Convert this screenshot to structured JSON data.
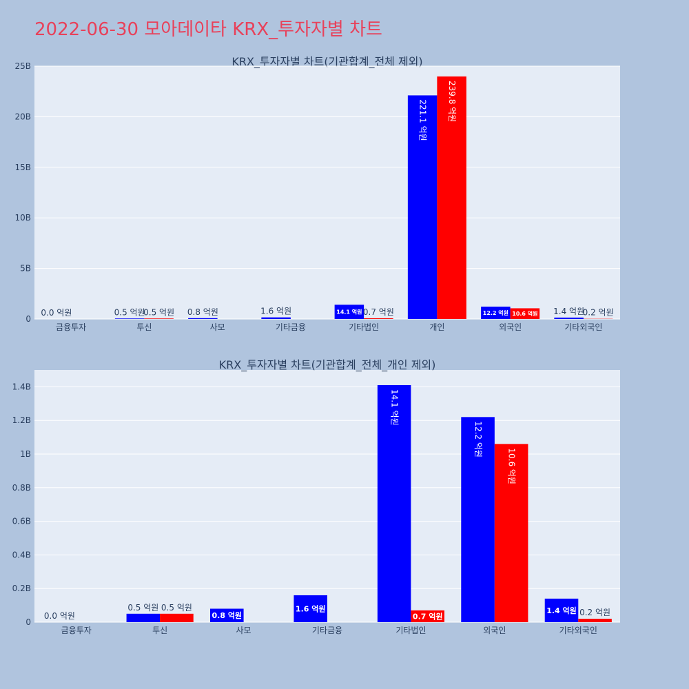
{
  "page": {
    "title": "2022-06-30 모아데이타 KRX_투자자별 차트"
  },
  "colors": {
    "series1": "#0000ff",
    "series2": "#ff0000",
    "plot_bg": "#e5ecf6",
    "page_bg": "#b0c4de",
    "title": "#e8415a"
  },
  "chart_data": [
    {
      "type": "bar",
      "title": "KRX_투자자별 차트(기관합계_전체 제외)",
      "categories": [
        "금융투자",
        "투신",
        "사모",
        "기타금융",
        "기타법인",
        "개인",
        "외국인",
        "기타외국인"
      ],
      "ylim": [
        0,
        25000000000
      ],
      "yticks": [
        0,
        5000000000,
        10000000000,
        15000000000,
        20000000000,
        25000000000
      ],
      "yticklabels": [
        "0",
        "5B",
        "10B",
        "15B",
        "20B",
        "25B"
      ],
      "grid": true,
      "series": [
        {
          "values": [
            0,
            50000000,
            80000000,
            160000000,
            1410000000,
            22110000000,
            1220000000,
            140000000
          ],
          "labels": [
            "0.0 억원",
            "0.5 억원",
            "0.8 억원",
            "1.6 억원",
            "14.1 억원",
            "221.1 억원",
            "12.2 억원",
            "1.4 억원"
          ]
        },
        {
          "values": [
            null,
            50000000,
            null,
            null,
            70000000,
            23980000000,
            1060000000,
            20000000
          ],
          "labels": [
            null,
            "0.5 억원",
            null,
            null,
            "0.7 억원",
            "239.8 억원",
            "10.6 억원",
            "0.2 억원"
          ]
        }
      ]
    },
    {
      "type": "bar",
      "title": "KRX_투자자별 차트(기관합계_전체_개인 제외)",
      "categories": [
        "금융투자",
        "투신",
        "사모",
        "기타금융",
        "기타법인",
        "외국인",
        "기타외국인"
      ],
      "ylim": [
        0,
        1500000000
      ],
      "yticks": [
        0,
        200000000,
        400000000,
        600000000,
        800000000,
        1000000000,
        1200000000,
        1400000000
      ],
      "yticklabels": [
        "0",
        "0.2B",
        "0.4B",
        "0.6B",
        "0.8B",
        "1B",
        "1.2B",
        "1.4B"
      ],
      "grid": true,
      "series": [
        {
          "values": [
            0,
            50000000,
            80000000,
            160000000,
            1410000000,
            1220000000,
            140000000
          ],
          "labels": [
            "0.0 억원",
            "0.5 억원",
            "0.8 억원",
            "1.6 억원",
            "14.1 억원",
            "12.2 억원",
            "1.4 억원"
          ]
        },
        {
          "values": [
            null,
            50000000,
            null,
            null,
            70000000,
            1060000000,
            20000000
          ],
          "labels": [
            null,
            "0.5 억원",
            null,
            null,
            "0.7 억원",
            "10.6 억원",
            "0.2 억원"
          ]
        }
      ]
    }
  ]
}
